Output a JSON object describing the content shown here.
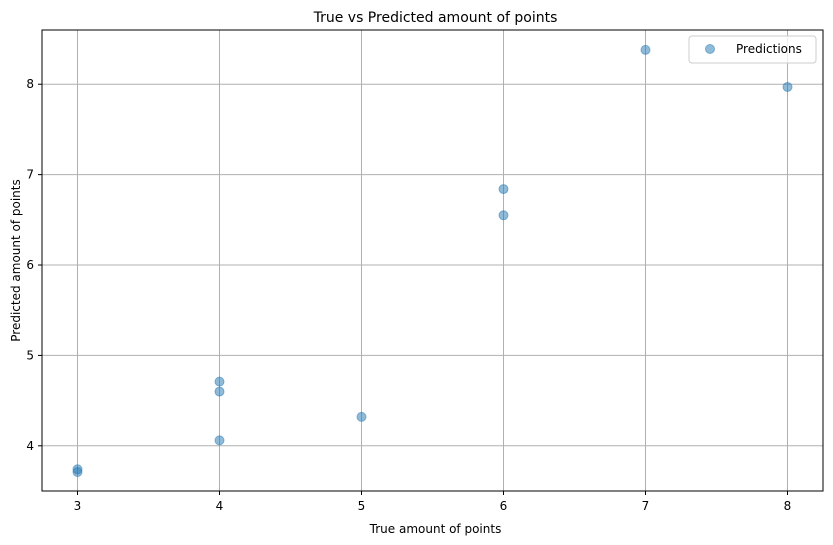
{
  "chart_data": {
    "type": "scatter",
    "title": "True vs Predicted amount of points",
    "xlabel": "True amount of points",
    "ylabel": "Predicted amount of points",
    "xlim": [
      2.75,
      8.25
    ],
    "ylim": [
      3.5,
      8.6
    ],
    "xticks": [
      3,
      4,
      5,
      6,
      7,
      8
    ],
    "yticks": [
      4,
      5,
      6,
      7,
      8
    ],
    "grid": true,
    "legend_position": "top-right",
    "series": [
      {
        "name": "Predictions",
        "color": "#1f77b4",
        "alpha": 0.5,
        "x": [
          3,
          3,
          4,
          4,
          4,
          5,
          6,
          6,
          7,
          8
        ],
        "y": [
          3.71,
          3.74,
          4.06,
          4.6,
          4.71,
          4.32,
          6.55,
          6.84,
          8.38,
          7.97
        ]
      }
    ]
  }
}
